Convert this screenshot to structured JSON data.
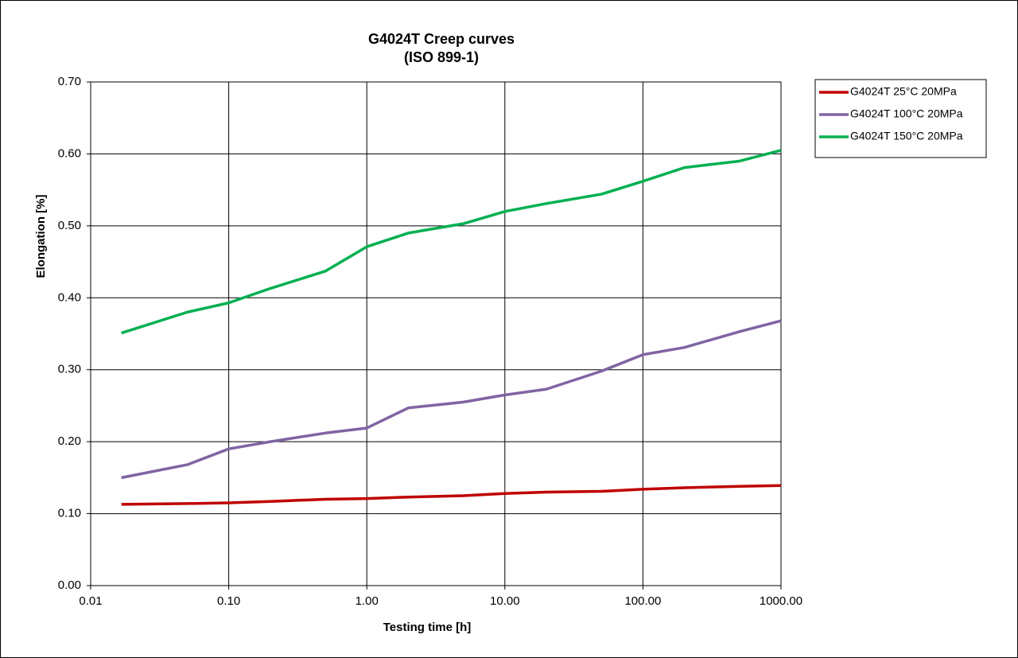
{
  "chart_data": {
    "type": "line",
    "title": "G4024T Creep curves",
    "subtitle": "(ISO 899-1)",
    "x_label": "Testing time [h]",
    "y_label": "Elongation [%]",
    "x": [
      0.0167,
      0.05,
      0.1,
      0.2,
      0.5,
      1,
      2,
      5,
      10,
      20,
      50,
      100,
      200,
      500,
      1000
    ],
    "series": [
      {
        "name": "G4024T 25°C 20MPa",
        "color": "#c00000",
        "values": [
          0.113,
          0.114,
          0.115,
          0.117,
          0.12,
          0.121,
          0.123,
          0.125,
          0.128,
          0.13,
          0.131,
          0.134,
          0.136,
          0.138,
          0.139
        ]
      },
      {
        "name": "G4024T 100°C 20MPa",
        "color": "#8064a2",
        "values": [
          0.15,
          0.168,
          0.19,
          0.2,
          0.212,
          0.219,
          0.247,
          0.255,
          0.265,
          0.273,
          0.298,
          0.321,
          0.331,
          0.353,
          0.368
        ]
      },
      {
        "name": "G4024T 150°C 20MPa",
        "color": "#00b050",
        "values": [
          0.351,
          0.38,
          0.393,
          0.413,
          0.437,
          0.471,
          0.49,
          0.503,
          0.52,
          0.531,
          0.544,
          0.562,
          0.581,
          0.59,
          0.605
        ]
      }
    ],
    "xscale": "log",
    "xlim": [
      0.01,
      1000
    ],
    "xticks": [
      0.01,
      {
        "value": 0.1,
        "label": "0.10"
      },
      {
        "value": 1,
        "label": "1.00"
      },
      {
        "value": 10,
        "label": "10.00"
      },
      {
        "value": 100,
        "label": "100.00"
      },
      {
        "value": 1000,
        "label": "1000.00"
      }
    ],
    "ylim": [
      0,
      0.7
    ],
    "yticks": [
      {
        "value": 0,
        "label": "0.00"
      },
      {
        "value": 0.1,
        "label": "0.10"
      },
      {
        "value": 0.2,
        "label": "0.20"
      },
      {
        "value": 0.3,
        "label": "0.30"
      },
      {
        "value": 0.4,
        "label": "0.40"
      },
      {
        "value": 0.5,
        "label": "0.50"
      },
      {
        "value": 0.6,
        "label": "0.60"
      },
      {
        "value": 0.7,
        "label": "0.70"
      }
    ],
    "grid": true,
    "legend": "right"
  }
}
